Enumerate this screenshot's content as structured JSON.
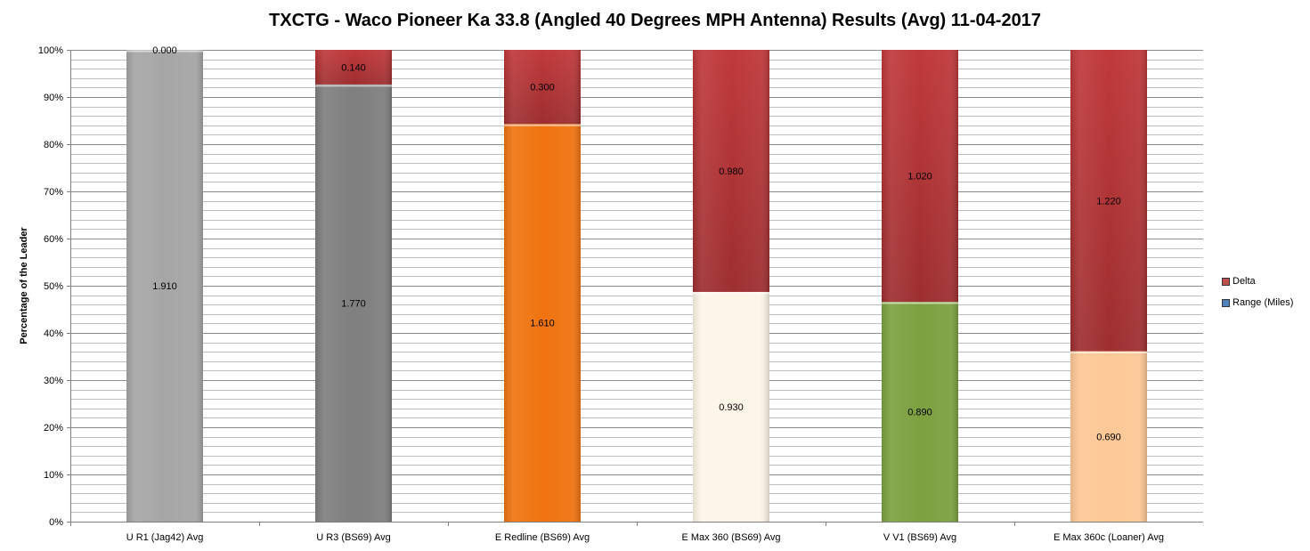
{
  "title": "TXCTG - Waco Pioneer Ka 33.8 (Angled 40 Degrees MPH Antenna) Results (Avg) 11-04-2017",
  "chart_data": {
    "type": "bar",
    "stacked": "percent",
    "title": "TXCTG - Waco Pioneer Ka 33.8 (Angled 40 Degrees MPH Antenna) Results (Avg) 11-04-2017",
    "xlabel": "",
    "ylabel": "Percentage of the Leader",
    "ylim": [
      0,
      100
    ],
    "y_ticks": [
      "0%",
      "10%",
      "20%",
      "30%",
      "40%",
      "50%",
      "60%",
      "70%",
      "80%",
      "90%",
      "100%"
    ],
    "grid": true,
    "legend_position": "right",
    "categories": [
      "U R1 (Jag42) Avg",
      "U R3 (BS69) Avg",
      "E Redline (BS69) Avg",
      "E Max 360 (BS69) Avg",
      "V V1 (BS69) Avg",
      "E Max 360c (Loaner) Avg"
    ],
    "series": [
      {
        "name": "Range (Miles)",
        "values": [
          1.91,
          1.77,
          1.61,
          0.93,
          0.89,
          0.69
        ],
        "labels": [
          "1.910",
          "1.770",
          "1.610",
          "0.930",
          "0.890",
          "0.690"
        ],
        "colors": [
          "#a6a6a6",
          "#7f7f7f",
          "#f07410",
          "#fdf5e8",
          "#7ca140",
          "#fdc896"
        ],
        "legend_color": "#4f81bd"
      },
      {
        "name": "Delta",
        "values": [
          0.0,
          0.14,
          0.3,
          0.98,
          1.02,
          1.22
        ],
        "labels": [
          "0.000",
          "0.140",
          "0.300",
          "0.980",
          "1.020",
          "1.220"
        ],
        "color": "#c0393b"
      }
    ]
  },
  "legend": {
    "items": [
      {
        "label": "Delta",
        "color": "#c0504d"
      },
      {
        "label": "Range (Miles)",
        "color": "#4f81bd"
      }
    ]
  }
}
